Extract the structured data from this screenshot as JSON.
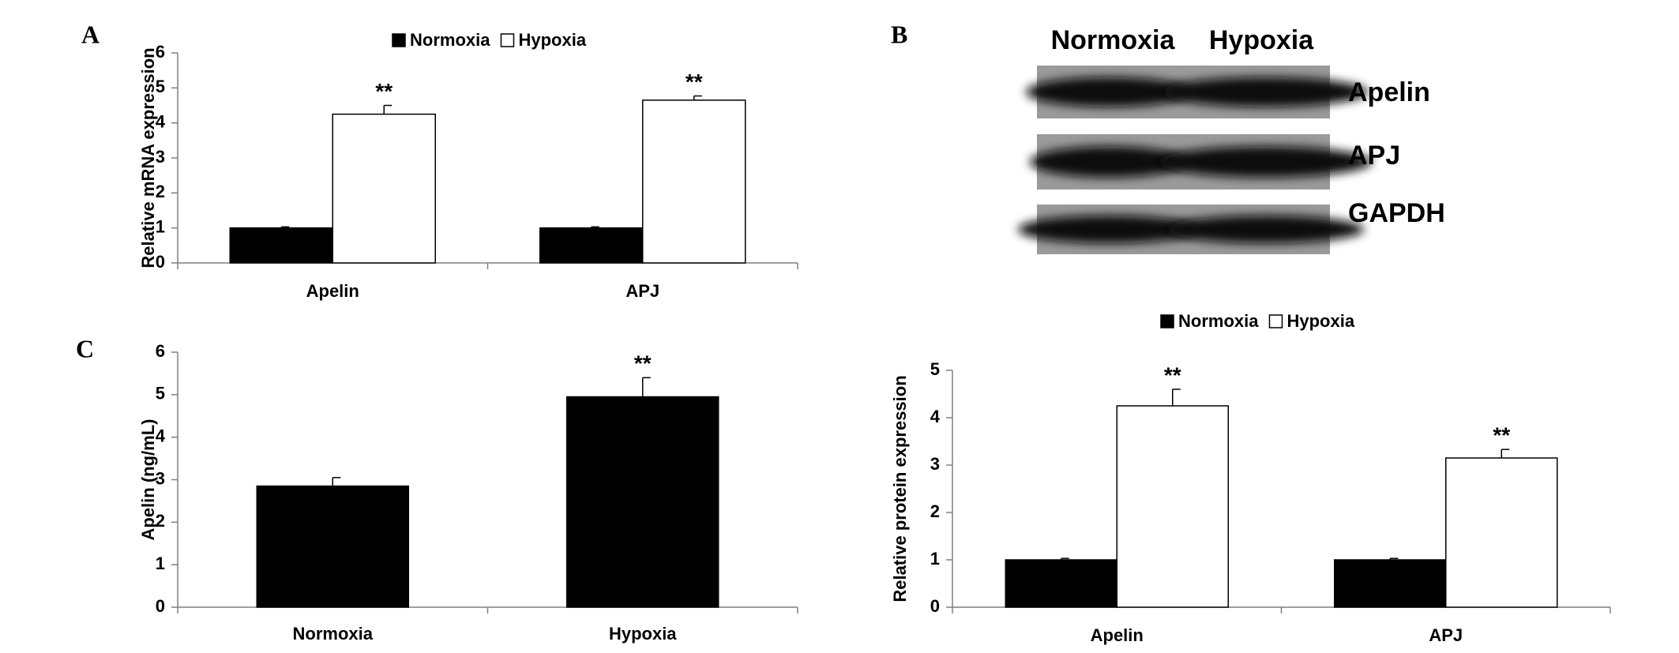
{
  "chart_data": [
    {
      "type": "bar",
      "panel": "A",
      "y_label": "Relative mRNA expression",
      "categories": [
        "Apelin",
        "APJ"
      ],
      "series": [
        {
          "name": "Normoxia",
          "color": "#000000",
          "values": [
            1,
            1
          ],
          "errors": [
            0.03,
            0.03
          ]
        },
        {
          "name": "Hypoxia",
          "color": "#ffffff",
          "values": [
            4.25,
            4.65
          ],
          "errors": [
            0.25,
            0.12
          ],
          "annotations": [
            "**",
            "**"
          ]
        }
      ],
      "ylim": [
        0,
        6
      ],
      "yticks": [
        0,
        1,
        2,
        3,
        4,
        5,
        6
      ]
    },
    {
      "type": "bar",
      "y_label": "Relative protein expression",
      "categories": [
        "Apelin",
        "APJ"
      ],
      "series": [
        {
          "name": "Normoxia",
          "color": "#000000",
          "values": [
            1,
            1
          ],
          "errors": [
            0.03,
            0.03
          ]
        },
        {
          "name": "Hypoxia",
          "color": "#ffffff",
          "values": [
            4.25,
            3.15
          ],
          "errors": [
            0.35,
            0.18
          ],
          "annotations": [
            "**",
            "**"
          ]
        }
      ],
      "ylim": [
        0,
        5
      ],
      "yticks": [
        0,
        1,
        2,
        3,
        4,
        5
      ]
    },
    {
      "type": "bar",
      "panel": "C",
      "y_label": "Apelin (ng/mL)",
      "categories": [
        "Normoxia",
        "Hypoxia"
      ],
      "series": [
        {
          "color": "#000000",
          "values": [
            2.85,
            4.95
          ],
          "errors": [
            0.2,
            0.45
          ],
          "annotations": [
            null,
            "**"
          ]
        }
      ],
      "ylim": [
        0,
        6
      ],
      "yticks": [
        0,
        1,
        2,
        3,
        4,
        5,
        6
      ]
    }
  ],
  "blot": {
    "panel": "B",
    "columns": [
      "Normoxia",
      "Hypoxia"
    ],
    "rows": [
      "Apelin",
      "APJ",
      "GAPDH"
    ]
  }
}
